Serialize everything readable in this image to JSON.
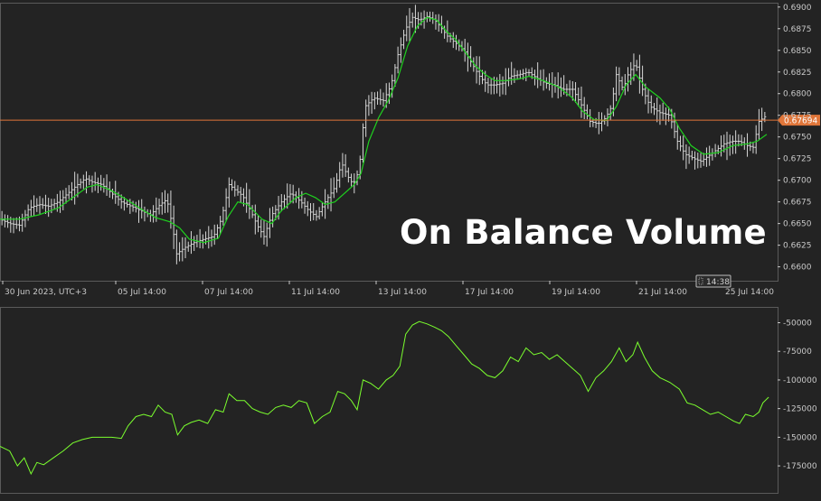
{
  "colors": {
    "background": "#232323",
    "price_bars": "#d8d8d8",
    "moving_average": "#1fd11f",
    "obv_line": "#7bff2e",
    "current_price_line": "#e0763a",
    "axis_text": "#c9c9c9",
    "grid_border": "#5a5a5a"
  },
  "chart_data": [
    {
      "type": "ohlc",
      "title": "On Balance Volume",
      "xlabel": "",
      "ylabel": "",
      "ylim": [
        0.6585,
        0.6905
      ],
      "y_ticks": [
        "0.6900",
        "0.6875",
        "0.6850",
        "0.6825",
        "0.6800",
        "0.6775",
        "0.6750",
        "0.6725",
        "0.6700",
        "0.6675",
        "0.6650",
        "0.6625",
        "0.6600"
      ],
      "x_ticks": [
        "30 Jun 2023, UTC+3",
        "05 Jul 14:00",
        "07 Jul 14:00",
        "11 Jul 14:00",
        "13 Jul 14:00",
        "17 Jul 14:00",
        "19 Jul 14:00",
        "21 Jul 14:00",
        "25 Jul 14:00"
      ],
      "current_price": "0.67694",
      "current_time": "14:38",
      "price_path": [
        [
          0,
          0.6655
        ],
        [
          10,
          0.665
        ],
        [
          20,
          0.6648
        ],
        [
          30,
          0.6668
        ],
        [
          40,
          0.6672
        ],
        [
          50,
          0.667
        ],
        [
          60,
          0.6675
        ],
        [
          70,
          0.6685
        ],
        [
          80,
          0.6695
        ],
        [
          88,
          0.6702
        ],
        [
          95,
          0.6698
        ],
        [
          105,
          0.6695
        ],
        [
          115,
          0.6685
        ],
        [
          125,
          0.6675
        ],
        [
          135,
          0.667
        ],
        [
          145,
          0.6665
        ],
        [
          155,
          0.666
        ],
        [
          165,
          0.6672
        ],
        [
          172,
          0.6678
        ],
        [
          178,
          0.6645
        ],
        [
          182,
          0.6615
        ],
        [
          190,
          0.6622
        ],
        [
          200,
          0.6628
        ],
        [
          210,
          0.6632
        ],
        [
          220,
          0.6635
        ],
        [
          228,
          0.6655
        ],
        [
          236,
          0.6695
        ],
        [
          243,
          0.6688
        ],
        [
          250,
          0.6682
        ],
        [
          258,
          0.6665
        ],
        [
          265,
          0.6648
        ],
        [
          272,
          0.6635
        ],
        [
          280,
          0.666
        ],
        [
          290,
          0.6675
        ],
        [
          300,
          0.6685
        ],
        [
          310,
          0.6675
        ],
        [
          318,
          0.6665
        ],
        [
          326,
          0.6658
        ],
        [
          335,
          0.6675
        ],
        [
          345,
          0.6692
        ],
        [
          352,
          0.672
        ],
        [
          358,
          0.6705
        ],
        [
          364,
          0.6695
        ],
        [
          370,
          0.6712
        ],
        [
          376,
          0.6785
        ],
        [
          385,
          0.6795
        ],
        [
          395,
          0.6792
        ],
        [
          403,
          0.681
        ],
        [
          410,
          0.6845
        ],
        [
          418,
          0.6875
        ],
        [
          425,
          0.6888
        ],
        [
          432,
          0.6885
        ],
        [
          440,
          0.6889
        ],
        [
          448,
          0.6885
        ],
        [
          455,
          0.6875
        ],
        [
          462,
          0.6865
        ],
        [
          470,
          0.6858
        ],
        [
          478,
          0.685
        ],
        [
          486,
          0.6835
        ],
        [
          494,
          0.682
        ],
        [
          502,
          0.681
        ],
        [
          510,
          0.681
        ],
        [
          518,
          0.6812
        ],
        [
          526,
          0.682
        ],
        [
          535,
          0.6822
        ],
        [
          544,
          0.6825
        ],
        [
          553,
          0.6818
        ],
        [
          562,
          0.6812
        ],
        [
          571,
          0.681
        ],
        [
          580,
          0.6805
        ],
        [
          590,
          0.6805
        ],
        [
          600,
          0.6785
        ],
        [
          608,
          0.6768
        ],
        [
          616,
          0.6765
        ],
        [
          624,
          0.6772
        ],
        [
          630,
          0.6785
        ],
        [
          635,
          0.6822
        ],
        [
          642,
          0.6805
        ],
        [
          648,
          0.6825
        ],
        [
          655,
          0.6835
        ],
        [
          662,
          0.6805
        ],
        [
          670,
          0.6785
        ],
        [
          680,
          0.6778
        ],
        [
          690,
          0.6775
        ],
        [
          698,
          0.6745
        ],
        [
          706,
          0.673
        ],
        [
          715,
          0.6725
        ],
        [
          722,
          0.6722
        ],
        [
          730,
          0.6728
        ],
        [
          738,
          0.6735
        ],
        [
          746,
          0.6742
        ],
        [
          754,
          0.6745
        ],
        [
          762,
          0.6745
        ],
        [
          770,
          0.674
        ],
        [
          776,
          0.6738
        ],
        [
          782,
          0.6768
        ],
        [
          790,
          0.6775
        ]
      ],
      "moving_average": [
        [
          0,
          0.6655
        ],
        [
          20,
          0.6655
        ],
        [
          40,
          0.666
        ],
        [
          60,
          0.6668
        ],
        [
          75,
          0.668
        ],
        [
          90,
          0.6692
        ],
        [
          100,
          0.6695
        ],
        [
          115,
          0.6688
        ],
        [
          130,
          0.6678
        ],
        [
          145,
          0.6667
        ],
        [
          160,
          0.6657
        ],
        [
          175,
          0.6652
        ],
        [
          185,
          0.6645
        ],
        [
          195,
          0.6632
        ],
        [
          210,
          0.6628
        ],
        [
          225,
          0.6633
        ],
        [
          235,
          0.6658
        ],
        [
          245,
          0.6675
        ],
        [
          255,
          0.6672
        ],
        [
          270,
          0.6655
        ],
        [
          280,
          0.665
        ],
        [
          290,
          0.6665
        ],
        [
          305,
          0.668
        ],
        [
          315,
          0.6685
        ],
        [
          325,
          0.668
        ],
        [
          335,
          0.6672
        ],
        [
          345,
          0.6675
        ],
        [
          355,
          0.6685
        ],
        [
          365,
          0.6695
        ],
        [
          372,
          0.6708
        ],
        [
          380,
          0.6745
        ],
        [
          390,
          0.6772
        ],
        [
          400,
          0.6792
        ],
        [
          410,
          0.6818
        ],
        [
          420,
          0.6855
        ],
        [
          430,
          0.6878
        ],
        [
          440,
          0.6888
        ],
        [
          450,
          0.6885
        ],
        [
          460,
          0.6872
        ],
        [
          470,
          0.6862
        ],
        [
          480,
          0.6847
        ],
        [
          490,
          0.6832
        ],
        [
          500,
          0.6822
        ],
        [
          510,
          0.6815
        ],
        [
          520,
          0.6815
        ],
        [
          535,
          0.6817
        ],
        [
          545,
          0.682
        ],
        [
          560,
          0.6815
        ],
        [
          575,
          0.6808
        ],
        [
          590,
          0.6795
        ],
        [
          600,
          0.678
        ],
        [
          612,
          0.677
        ],
        [
          625,
          0.6769
        ],
        [
          635,
          0.6785
        ],
        [
          645,
          0.681
        ],
        [
          655,
          0.6822
        ],
        [
          665,
          0.6808
        ],
        [
          680,
          0.6795
        ],
        [
          690,
          0.6782
        ],
        [
          700,
          0.676
        ],
        [
          712,
          0.674
        ],
        [
          725,
          0.673
        ],
        [
          740,
          0.6732
        ],
        [
          755,
          0.674
        ],
        [
          770,
          0.6742
        ],
        [
          780,
          0.6745
        ],
        [
          790,
          0.6753
        ]
      ]
    },
    {
      "type": "line",
      "title": "",
      "xlabel": "",
      "ylabel": "",
      "ylim": [
        -197000,
        -37000
      ],
      "y_ticks": [
        "-50000",
        "-75000",
        "-100000",
        "-125000",
        "-150000",
        "-175000"
      ],
      "series": [
        {
          "values": [
            [
              0,
              -158000
            ],
            [
              10,
              -162000
            ],
            [
              18,
              -175000
            ],
            [
              25,
              -168000
            ],
            [
              32,
              -182000
            ],
            [
              38,
              -172000
            ],
            [
              45,
              -174000
            ],
            [
              55,
              -168000
            ],
            [
              65,
              -162000
            ],
            [
              75,
              -155000
            ],
            [
              85,
              -152000
            ],
            [
              95,
              -150000
            ],
            [
              105,
              -150000
            ],
            [
              115,
              -150000
            ],
            [
              125,
              -151000
            ],
            [
              132,
              -140000
            ],
            [
              140,
              -132000
            ],
            [
              148,
              -130000
            ],
            [
              156,
              -132000
            ],
            [
              163,
              -122000
            ],
            [
              170,
              -128000
            ],
            [
              177,
              -130000
            ],
            [
              183,
              -148000
            ],
            [
              190,
              -140000
            ],
            [
              197,
              -137000
            ],
            [
              205,
              -135000
            ],
            [
              214,
              -138000
            ],
            [
              222,
              -126000
            ],
            [
              230,
              -128000
            ],
            [
              236,
              -112000
            ],
            [
              244,
              -118000
            ],
            [
              252,
              -118000
            ],
            [
              260,
              -125000
            ],
            [
              268,
              -128000
            ],
            [
              276,
              -130000
            ],
            [
              284,
              -124000
            ],
            [
              292,
              -122000
            ],
            [
              300,
              -124000
            ],
            [
              308,
              -118000
            ],
            [
              316,
              -120000
            ],
            [
              324,
              -138000
            ],
            [
              332,
              -132000
            ],
            [
              340,
              -128000
            ],
            [
              348,
              -110000
            ],
            [
              355,
              -112000
            ],
            [
              362,
              -118000
            ],
            [
              368,
              -126000
            ],
            [
              374,
              -100000
            ],
            [
              382,
              -103000
            ],
            [
              390,
              -108000
            ],
            [
              398,
              -100000
            ],
            [
              405,
              -96000
            ],
            [
              412,
              -88000
            ],
            [
              418,
              -60000
            ],
            [
              425,
              -52000
            ],
            [
              432,
              -49000
            ],
            [
              440,
              -51000
            ],
            [
              448,
              -54000
            ],
            [
              455,
              -57000
            ],
            [
              462,
              -62000
            ],
            [
              470,
              -70000
            ],
            [
              478,
              -78000
            ],
            [
              486,
              -86000
            ],
            [
              494,
              -90000
            ],
            [
              502,
              -96000
            ],
            [
              510,
              -98000
            ],
            [
              518,
              -92000
            ],
            [
              526,
              -80000
            ],
            [
              534,
              -84000
            ],
            [
              542,
              -72000
            ],
            [
              550,
              -78000
            ],
            [
              558,
              -76000
            ],
            [
              566,
              -82000
            ],
            [
              574,
              -78000
            ],
            [
              582,
              -84000
            ],
            [
              590,
              -90000
            ],
            [
              598,
              -96000
            ],
            [
              606,
              -110000
            ],
            [
              614,
              -98000
            ],
            [
              622,
              -92000
            ],
            [
              630,
              -84000
            ],
            [
              638,
              -72000
            ],
            [
              645,
              -84000
            ],
            [
              652,
              -78000
            ],
            [
              657,
              -67000
            ],
            [
              664,
              -80000
            ],
            [
              672,
              -92000
            ],
            [
              680,
              -98000
            ],
            [
              690,
              -102000
            ],
            [
              700,
              -108000
            ],
            [
              708,
              -120000
            ],
            [
              716,
              -122000
            ],
            [
              724,
              -126000
            ],
            [
              732,
              -130000
            ],
            [
              740,
              -128000
            ],
            [
              748,
              -132000
            ],
            [
              756,
              -136000
            ],
            [
              762,
              -138000
            ],
            [
              768,
              -130000
            ],
            [
              776,
              -132000
            ],
            [
              782,
              -128000
            ],
            [
              786,
              -120000
            ],
            [
              792,
              -115000
            ]
          ]
        }
      ]
    }
  ]
}
